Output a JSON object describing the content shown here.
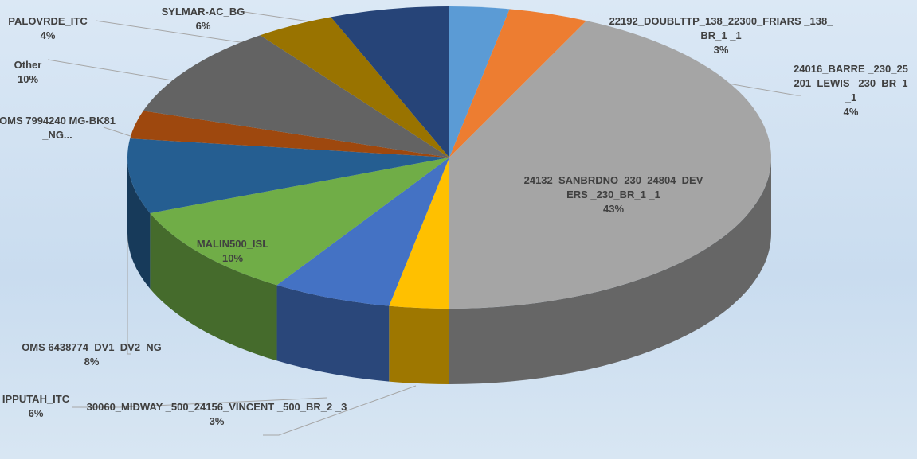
{
  "chart_data": {
    "type": "pie",
    "categories": [
      "22192_DOUBLTTP_138_22300_FRIARS _138_BR_1 _1",
      "24016_BARRE _230_25201_LEWIS _230_BR_1 _1",
      "24132_SANBRDNO_230_24804_DEVERS _230_BR_1 _1",
      "30060_MIDWAY _500_24156_VINCENT _500_BR_2 _3",
      "IPPUTAH_ITC",
      "MALIN500_ISL",
      "OMS 6438774_DV1_DV2_NG",
      "OMS 7994240 MG-BK81_NG...",
      "Other",
      "PALOVRDE_ITC",
      "SYLMAR-AC_BG"
    ],
    "values": [
      3,
      4,
      43,
      3,
      6,
      10,
      8,
      3,
      10,
      4,
      6
    ],
    "value_labels": [
      "3%",
      "4%",
      "43%",
      "3%",
      "6%",
      "10%",
      "8%",
      null,
      "10%",
      "4%",
      "6%"
    ],
    "colors": [
      "#5b9bd5",
      "#ed7d31",
      "#a5a5a5",
      "#ffc000",
      "#4472c4",
      "#70ad47",
      "#255e91",
      "#9e480e",
      "#636363",
      "#997300",
      "#264478"
    ]
  }
}
